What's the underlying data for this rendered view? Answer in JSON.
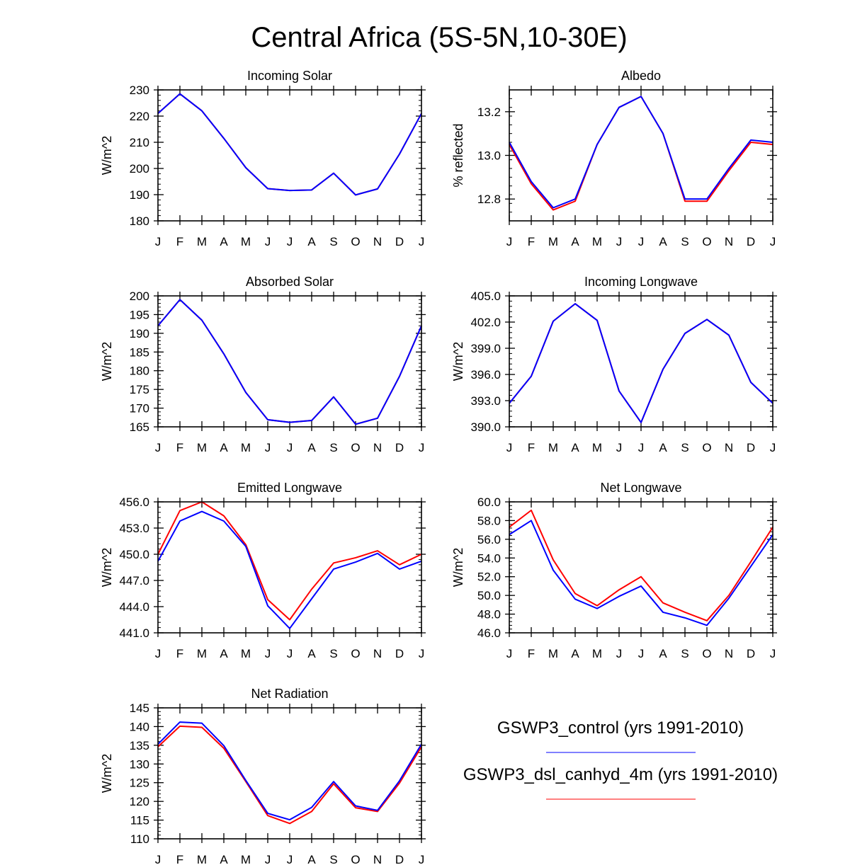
{
  "figure_title": "Central Africa (5S-5N,10-30E)",
  "colors": {
    "control": "#0000ff",
    "experiment": "#ff0000",
    "axis": "#000000"
  },
  "legend": [
    {
      "label": "GSWP3_control (yrs 1991-2010)",
      "color": "#0000ff"
    },
    {
      "label": "GSWP3_dsl_canhyd_4m (yrs 1991-2010)",
      "color": "#ff0000"
    }
  ],
  "chart_data": [
    {
      "type": "line",
      "title": "Incoming Solar",
      "ylabel": "W/m^2",
      "ylim": [
        180,
        230
      ],
      "yticks": [
        180,
        190,
        200,
        210,
        220,
        230
      ],
      "ytick_labels": [
        "180",
        "190",
        "200",
        "210",
        "220",
        "230"
      ],
      "yminor_step": 2,
      "categories": [
        "J",
        "F",
        "M",
        "A",
        "M",
        "J",
        "J",
        "A",
        "S",
        "O",
        "N",
        "D",
        "J"
      ],
      "series": [
        {
          "name": "GSWP3_dsl_canhyd_4m",
          "color": "#ff0000",
          "values": [
            221,
            228.5,
            222,
            211.5,
            200.3,
            192.3,
            191.6,
            191.8,
            198.2,
            189.9,
            192.2,
            205.5,
            221
          ]
        },
        {
          "name": "GSWP3_control",
          "color": "#0000ff",
          "values": [
            221,
            228.5,
            222,
            211.5,
            200.3,
            192.3,
            191.6,
            191.8,
            198.2,
            189.9,
            192.2,
            205.5,
            221
          ]
        }
      ]
    },
    {
      "type": "line",
      "title": "Albedo",
      "ylabel": "% reflected",
      "ylim": [
        12.7,
        13.3
      ],
      "yticks": [
        12.8,
        13.0,
        13.2
      ],
      "ytick_labels": [
        "12.8",
        "13.0",
        "13.2"
      ],
      "yminor_step": 0.04,
      "categories": [
        "J",
        "F",
        "M",
        "A",
        "M",
        "J",
        "J",
        "A",
        "S",
        "O",
        "N",
        "D",
        "J"
      ],
      "series": [
        {
          "name": "GSWP3_dsl_canhyd_4m",
          "color": "#ff0000",
          "values": [
            13.05,
            12.87,
            12.75,
            12.79,
            13.05,
            13.22,
            13.27,
            13.1,
            12.79,
            12.79,
            12.93,
            13.06,
            13.05
          ]
        },
        {
          "name": "GSWP3_control",
          "color": "#0000ff",
          "values": [
            13.06,
            12.88,
            12.76,
            12.8,
            13.05,
            13.22,
            13.27,
            13.1,
            12.8,
            12.8,
            12.94,
            13.07,
            13.06
          ]
        }
      ]
    },
    {
      "type": "line",
      "title": "Absorbed Solar",
      "ylabel": "W/m^2",
      "ylim": [
        165,
        200
      ],
      "yticks": [
        165,
        170,
        175,
        180,
        185,
        190,
        195,
        200
      ],
      "ytick_labels": [
        "165",
        "170",
        "175",
        "180",
        "185",
        "190",
        "195",
        "200"
      ],
      "yminor_step": 1,
      "categories": [
        "J",
        "F",
        "M",
        "A",
        "M",
        "J",
        "J",
        "A",
        "S",
        "O",
        "N",
        "D",
        "J"
      ],
      "series": [
        {
          "name": "GSWP3_dsl_canhyd_4m",
          "color": "#ff0000",
          "values": [
            192,
            199,
            193.5,
            184.5,
            174.2,
            166.9,
            166.2,
            166.7,
            173,
            165.7,
            167.3,
            178.5,
            192
          ]
        },
        {
          "name": "GSWP3_control",
          "color": "#0000ff",
          "values": [
            192,
            199,
            193.5,
            184.5,
            174.2,
            166.9,
            166.2,
            166.7,
            173,
            165.7,
            167.3,
            178.5,
            192
          ]
        }
      ]
    },
    {
      "type": "line",
      "title": "Incoming Longwave",
      "ylabel": "W/m^2",
      "ylim": [
        390,
        405
      ],
      "yticks": [
        390,
        393,
        396,
        399,
        402,
        405
      ],
      "ytick_labels": [
        "390.0",
        "393.0",
        "396.0",
        "399.0",
        "402.0",
        "405.0"
      ],
      "yminor_step": 0.6,
      "categories": [
        "J",
        "F",
        "M",
        "A",
        "M",
        "J",
        "J",
        "A",
        "S",
        "O",
        "N",
        "D",
        "J"
      ],
      "series": [
        {
          "name": "GSWP3_dsl_canhyd_4m",
          "color": "#ff0000",
          "values": [
            392.7,
            395.8,
            402.1,
            404.1,
            402.2,
            394.1,
            390.5,
            396.6,
            400.7,
            402.3,
            400.5,
            395.1,
            392.7
          ]
        },
        {
          "name": "GSWP3_control",
          "color": "#0000ff",
          "values": [
            392.7,
            395.8,
            402.1,
            404.1,
            402.2,
            394.1,
            390.5,
            396.6,
            400.7,
            402.3,
            400.5,
            395.1,
            392.7
          ]
        }
      ]
    },
    {
      "type": "line",
      "title": "Emitted Longwave",
      "ylabel": "W/m^2",
      "ylim": [
        441,
        456
      ],
      "yticks": [
        441,
        444,
        447,
        450,
        453,
        456
      ],
      "ytick_labels": [
        "441.0",
        "444.0",
        "447.0",
        "450.0",
        "453.0",
        "456.0"
      ],
      "yminor_step": 0.6,
      "categories": [
        "J",
        "F",
        "M",
        "A",
        "M",
        "J",
        "J",
        "A",
        "S",
        "O",
        "N",
        "D",
        "J"
      ],
      "series": [
        {
          "name": "GSWP3_dsl_canhyd_4m",
          "color": "#ff0000",
          "values": [
            450,
            455,
            456,
            454.4,
            451.1,
            444.8,
            442.5,
            446,
            449,
            449.6,
            450.4,
            448.8,
            450
          ]
        },
        {
          "name": "GSWP3_control",
          "color": "#0000ff",
          "values": [
            449.2,
            453.8,
            454.9,
            453.8,
            450.9,
            444.1,
            441.5,
            444.9,
            448.3,
            449.1,
            450.1,
            448.3,
            449.2
          ]
        }
      ]
    },
    {
      "type": "line",
      "title": "Net Longwave",
      "ylabel": "W/m^2",
      "ylim": [
        46,
        60
      ],
      "yticks": [
        46,
        48,
        50,
        52,
        54,
        56,
        58,
        60
      ],
      "ytick_labels": [
        "46.0",
        "48.0",
        "50.0",
        "52.0",
        "54.0",
        "56.0",
        "58.0",
        "60.0"
      ],
      "yminor_step": 0.4,
      "categories": [
        "J",
        "F",
        "M",
        "A",
        "M",
        "J",
        "J",
        "A",
        "S",
        "O",
        "N",
        "D",
        "J"
      ],
      "series": [
        {
          "name": "GSWP3_dsl_canhyd_4m",
          "color": "#ff0000",
          "values": [
            57.3,
            59.1,
            53.8,
            50.2,
            48.9,
            50.6,
            52,
            49.2,
            48.2,
            47.3,
            50,
            53.6,
            57.3
          ]
        },
        {
          "name": "GSWP3_control",
          "color": "#0000ff",
          "values": [
            56.5,
            58,
            52.7,
            49.6,
            48.6,
            49.9,
            51,
            48.2,
            47.6,
            46.8,
            49.7,
            53.1,
            56.5
          ]
        }
      ]
    },
    {
      "type": "line",
      "title": "Net Radiation",
      "ylabel": "W/m^2",
      "ylim": [
        110,
        145
      ],
      "yticks": [
        110,
        115,
        120,
        125,
        130,
        135,
        140,
        145
      ],
      "ytick_labels": [
        "110",
        "115",
        "120",
        "125",
        "130",
        "135",
        "140",
        "145"
      ],
      "yminor_step": 1,
      "categories": [
        "J",
        "F",
        "M",
        "A",
        "M",
        "J",
        "J",
        "A",
        "S",
        "O",
        "N",
        "D",
        "J"
      ],
      "series": [
        {
          "name": "GSWP3_dsl_canhyd_4m",
          "color": "#ff0000",
          "values": [
            134.6,
            140.1,
            139.8,
            134.2,
            125.3,
            116.2,
            114.1,
            117.3,
            124.7,
            118.3,
            117.3,
            124.9,
            134.6
          ]
        },
        {
          "name": "GSWP3_control",
          "color": "#0000ff",
          "values": [
            135.3,
            141.2,
            140.9,
            134.9,
            125.6,
            116.8,
            115.1,
            118.4,
            125.3,
            118.8,
            117.6,
            125.5,
            135.3
          ]
        }
      ]
    }
  ]
}
